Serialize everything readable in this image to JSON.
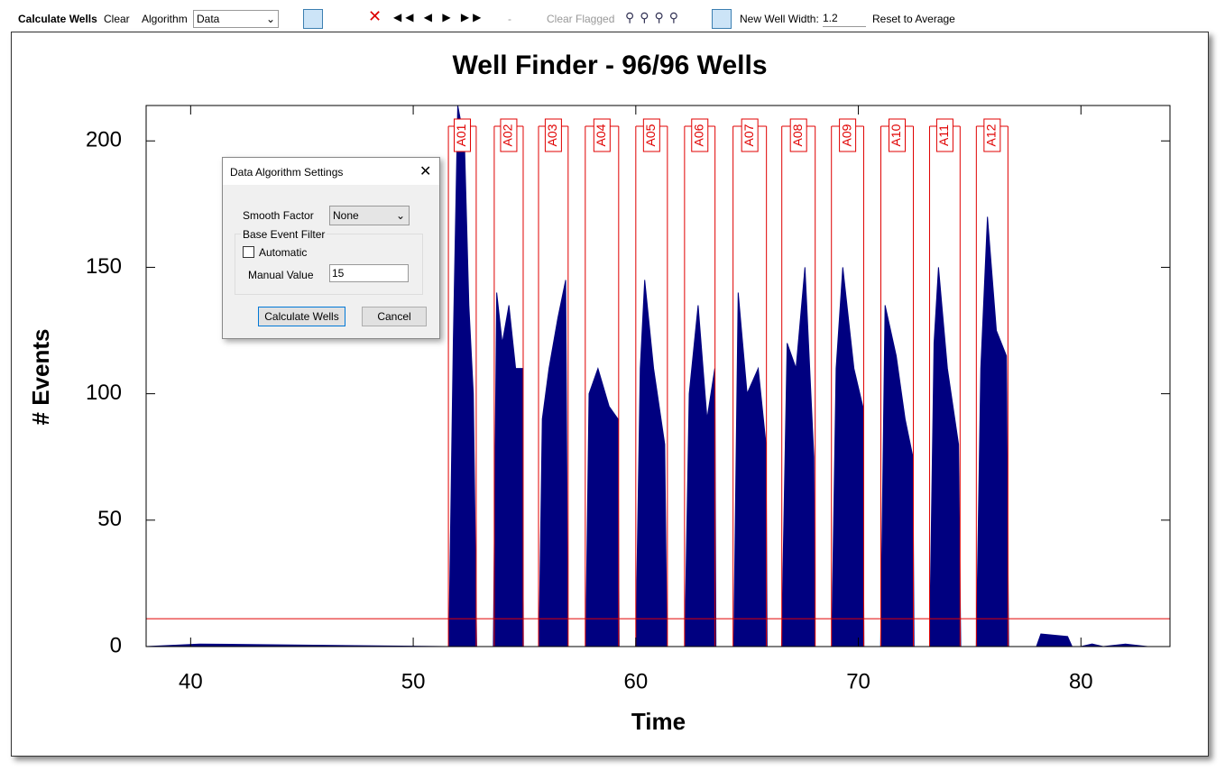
{
  "toolbar": {
    "calculate": "Calculate Wells",
    "clear": "Clear",
    "algorithm_label": "Algorithm",
    "algorithm_value": "Data",
    "separator": "-",
    "clear_flagged": "Clear Flagged",
    "width_label": "New Well Width:",
    "width_value": "1.2",
    "reset": "Reset to Average"
  },
  "dialog": {
    "title": "Data Algorithm Settings",
    "smooth_label": "Smooth Factor",
    "smooth_value": "None",
    "group_label": "Base Event Filter",
    "automatic": "Automatic",
    "manual_label": "Manual Value",
    "manual_value": "15",
    "ok": "Calculate Wells",
    "cancel": "Cancel"
  },
  "chart_data": {
    "type": "area",
    "title": "Well Finder - 96/96 Wells",
    "x_label": "Time",
    "y_label": "# Events",
    "color": "#000080",
    "x": [
      38,
      40.4,
      51.5,
      51.6,
      51.8,
      52.0,
      52.3,
      52.5,
      52.7,
      52.85,
      53.6,
      53.75,
      54.0,
      54.3,
      54.6,
      54.9,
      54.95,
      55.65,
      55.8,
      56.1,
      56.5,
      56.85,
      56.95,
      57.75,
      57.9,
      58.3,
      58.8,
      59.2,
      59.25,
      60.0,
      60.2,
      60.4,
      60.8,
      61.3,
      61.4,
      62.2,
      62.4,
      62.8,
      63.2,
      63.55,
      63.6,
      64.4,
      64.6,
      65.0,
      65.5,
      65.85,
      65.9,
      66.55,
      66.8,
      67.2,
      67.6,
      68.0,
      68.05,
      68.8,
      69.0,
      69.3,
      69.8,
      70.2,
      70.25,
      71.0,
      71.2,
      71.7,
      72.1,
      72.45,
      72.5,
      73.2,
      73.4,
      73.6,
      74.0,
      74.5,
      74.6,
      75.3,
      75.5,
      75.8,
      76.2,
      76.65,
      76.75,
      78.0,
      78.2,
      79.4,
      79.6,
      80.0,
      80.5,
      81.0,
      82.0,
      83.0,
      84
    ],
    "values": [
      0,
      1,
      0,
      0,
      120,
      214,
      200,
      135,
      100,
      0,
      0,
      140,
      120,
      135,
      110,
      110,
      0,
      0,
      90,
      110,
      130,
      145,
      0,
      0,
      100,
      110,
      95,
      90,
      0,
      0,
      110,
      145,
      110,
      80,
      0,
      0,
      100,
      135,
      90,
      110,
      0,
      0,
      140,
      100,
      110,
      80,
      0,
      0,
      120,
      110,
      150,
      75,
      0,
      0,
      110,
      150,
      110,
      95,
      0,
      0,
      135,
      115,
      90,
      75,
      0,
      0,
      120,
      150,
      110,
      80,
      0,
      0,
      110,
      170,
      125,
      115,
      0,
      0,
      5,
      4,
      0,
      0,
      1,
      0,
      1,
      0,
      0
    ],
    "xlim": [
      38,
      84
    ],
    "ylim": [
      0,
      214
    ],
    "xticks": [
      40,
      50,
      60,
      70,
      80
    ],
    "yticks": [
      0,
      50,
      100,
      150,
      200
    ],
    "threshold": 11,
    "threshold_color": "#e00000",
    "well_color": "#e00000",
    "wells": [
      {
        "name": "A01",
        "start": 51.58,
        "end": 52.83
      },
      {
        "name": "A02",
        "start": 53.64,
        "end": 54.94
      },
      {
        "name": "A03",
        "start": 55.63,
        "end": 56.96
      },
      {
        "name": "A04",
        "start": 57.73,
        "end": 59.23
      },
      {
        "name": "A05",
        "start": 60.0,
        "end": 61.42
      },
      {
        "name": "A06",
        "start": 62.19,
        "end": 63.56
      },
      {
        "name": "A07",
        "start": 64.37,
        "end": 65.87
      },
      {
        "name": "A08",
        "start": 66.56,
        "end": 68.06
      },
      {
        "name": "A09",
        "start": 68.79,
        "end": 70.24
      },
      {
        "name": "A10",
        "start": 71.01,
        "end": 72.47
      },
      {
        "name": "A11",
        "start": 73.2,
        "end": 74.57
      },
      {
        "name": "A12",
        "start": 75.3,
        "end": 76.72
      }
    ]
  }
}
